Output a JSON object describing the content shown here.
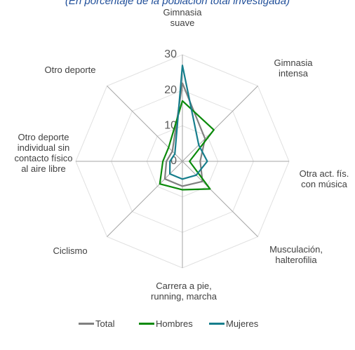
{
  "chart_data": {
    "type": "radar",
    "subtitle": "(En porcentaje de la población total investigada)",
    "categories": [
      "Gimnasia suave",
      "Gimnasia intensa",
      "Otra act. fís. con música",
      "Musculación, halterofilia",
      "Carrera a pie, running, marcha",
      "Ciclismo",
      "Otro deporte individual sin contacto físico al aire libre",
      "Otro deporte"
    ],
    "series": [
      {
        "name": "Total",
        "color": "#808080",
        "values": [
          22,
          9,
          5,
          8,
          7,
          7,
          4.5,
          4
        ]
      },
      {
        "name": "Hombres",
        "color": "#0a8a0a",
        "values": [
          17,
          12.5,
          2,
          11,
          8,
          9,
          5.5,
          5.5
        ]
      },
      {
        "name": "Mujeres",
        "color": "#167e8c",
        "values": [
          27,
          6.5,
          7,
          5.5,
          5,
          5,
          3.5,
          3
        ]
      }
    ],
    "ylim": [
      0,
      30
    ],
    "yticks": [
      0,
      10,
      20,
      30
    ],
    "grid": true,
    "legend": "bottom"
  }
}
